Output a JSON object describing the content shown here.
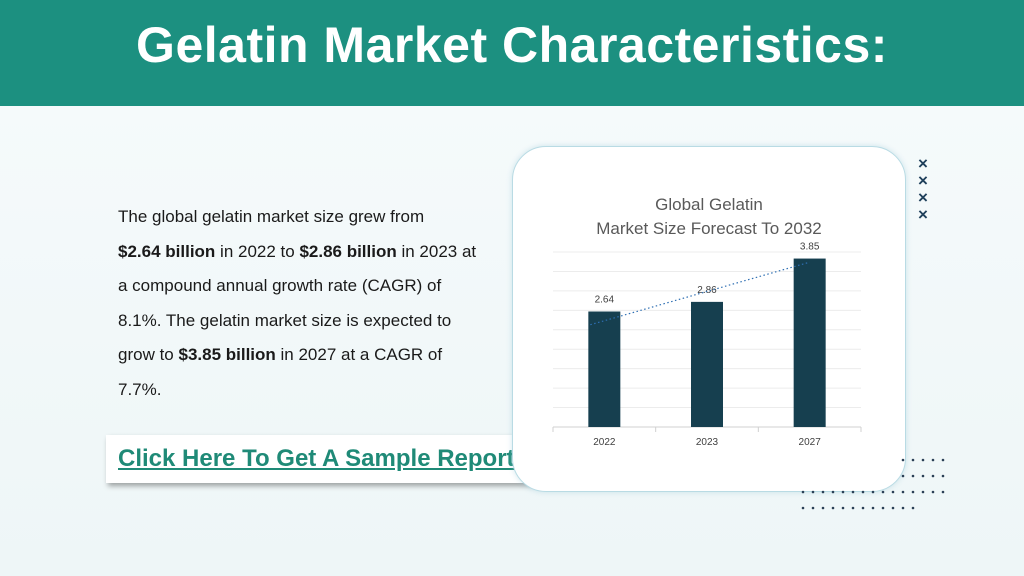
{
  "header": {
    "title": "Gelatin Market Characteristics:"
  },
  "body": {
    "p1": "The global gelatin market size grew from",
    "v1": "$2.64 billion",
    "p2": " in 2022 to ",
    "v2": "$2.86 billion",
    "p3": " in 2023 at a compound annual growth rate (CAGR) of 8.1%. The gelatin market size is expected to grow to ",
    "v3": "$3.85 billion",
    "p4": " in 2027 at a CAGR of 7.7%."
  },
  "cta": {
    "label": "Click Here To Get A Sample Report"
  },
  "colors": {
    "header": "#1c9080",
    "bar": "#163f4f",
    "link": "#1f8a77",
    "trend": "#2e6fb3"
  },
  "chart_data": {
    "type": "bar",
    "title_line1": "Global Gelatin",
    "title_line2": "Market Size Forecast To 2032",
    "categories": [
      "2022",
      "2023",
      "2027"
    ],
    "values": [
      2.64,
      2.86,
      3.85
    ],
    "data_labels": [
      "2.64",
      "2.86",
      "3.85"
    ],
    "ylim": [
      0,
      4
    ],
    "grid": true,
    "trendline": "linear, dotted",
    "legend": "none"
  }
}
